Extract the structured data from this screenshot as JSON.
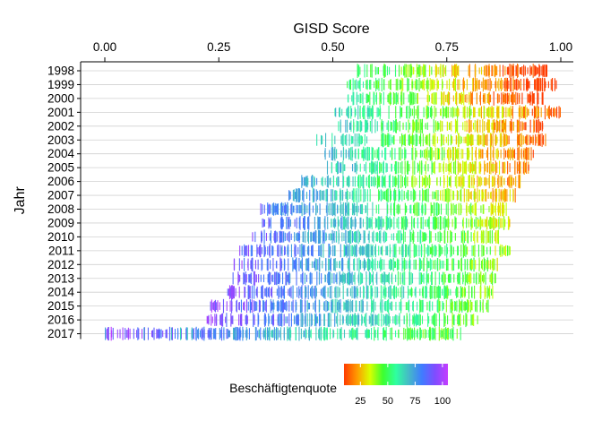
{
  "chart_data": {
    "type": "heatmap",
    "title": "",
    "xlabel": "GISD Score",
    "ylabel": "Jahr",
    "x_axis_position": "top",
    "xlim": [
      -0.05,
      1.01
    ],
    "x_ticks": [
      0.0,
      0.25,
      0.5,
      0.75,
      1.0
    ],
    "x_tick_labels": [
      "0.00",
      "0.25",
      "0.50",
      "0.75",
      "1.00"
    ],
    "categories": [
      "1998",
      "1999",
      "2000",
      "2001",
      "2002",
      "2003",
      "2004",
      "2005",
      "2006",
      "2007",
      "2008",
      "2009",
      "2010",
      "2011",
      "2012",
      "2013",
      "2014",
      "2015",
      "2016",
      "2017"
    ],
    "grid": true,
    "series": [
      {
        "year": "1998",
        "min": 0.55,
        "max": 0.97,
        "mean_quote": 30
      },
      {
        "year": "1999",
        "min": 0.53,
        "max": 0.99,
        "mean_quote": 30
      },
      {
        "year": "2000",
        "min": 0.53,
        "max": 0.96,
        "mean_quote": 32
      },
      {
        "year": "2001",
        "min": 0.5,
        "max": 1.0,
        "mean_quote": 40
      },
      {
        "year": "2002",
        "min": 0.51,
        "max": 0.96,
        "mean_quote": 38
      },
      {
        "year": "2003",
        "min": 0.46,
        "max": 0.97,
        "mean_quote": 40
      },
      {
        "year": "2004",
        "min": 0.48,
        "max": 0.94,
        "mean_quote": 42
      },
      {
        "year": "2005",
        "min": 0.48,
        "max": 0.93,
        "mean_quote": 44
      },
      {
        "year": "2006",
        "min": 0.43,
        "max": 0.91,
        "mean_quote": 46
      },
      {
        "year": "2007",
        "min": 0.4,
        "max": 0.9,
        "mean_quote": 50
      },
      {
        "year": "2008",
        "min": 0.34,
        "max": 0.88,
        "mean_quote": 58
      },
      {
        "year": "2009",
        "min": 0.34,
        "max": 0.89,
        "mean_quote": 60
      },
      {
        "year": "2010",
        "min": 0.32,
        "max": 0.87,
        "mean_quote": 62
      },
      {
        "year": "2011",
        "min": 0.29,
        "max": 0.89,
        "mean_quote": 64
      },
      {
        "year": "2012",
        "min": 0.28,
        "max": 0.86,
        "mean_quote": 65
      },
      {
        "year": "2013",
        "min": 0.28,
        "max": 0.86,
        "mean_quote": 66
      },
      {
        "year": "2014",
        "min": 0.26,
        "max": 0.85,
        "mean_quote": 67
      },
      {
        "year": "2015",
        "min": 0.23,
        "max": 0.84,
        "mean_quote": 68
      },
      {
        "year": "2016",
        "min": 0.22,
        "max": 0.82,
        "mean_quote": 69
      },
      {
        "year": "2017",
        "min": 0.0,
        "max": 0.78,
        "mean_quote": 70
      }
    ],
    "outliers_2017": [
      0.0,
      0.085,
      0.145,
      0.165,
      0.18,
      0.19
    ],
    "legend": {
      "title": "Beschäftigtenquote",
      "placement": "bottom",
      "range": [
        10,
        105
      ],
      "ticks": [
        25,
        50,
        75,
        100
      ],
      "tick_labels": [
        "25",
        "50",
        "75",
        "100"
      ],
      "colors": [
        "#ff3b00",
        "#ff9a00",
        "#d9ff00",
        "#3dff2f",
        "#2fffa0",
        "#45b8c8",
        "#3f7cff",
        "#7f4dff",
        "#c43cff"
      ]
    }
  }
}
